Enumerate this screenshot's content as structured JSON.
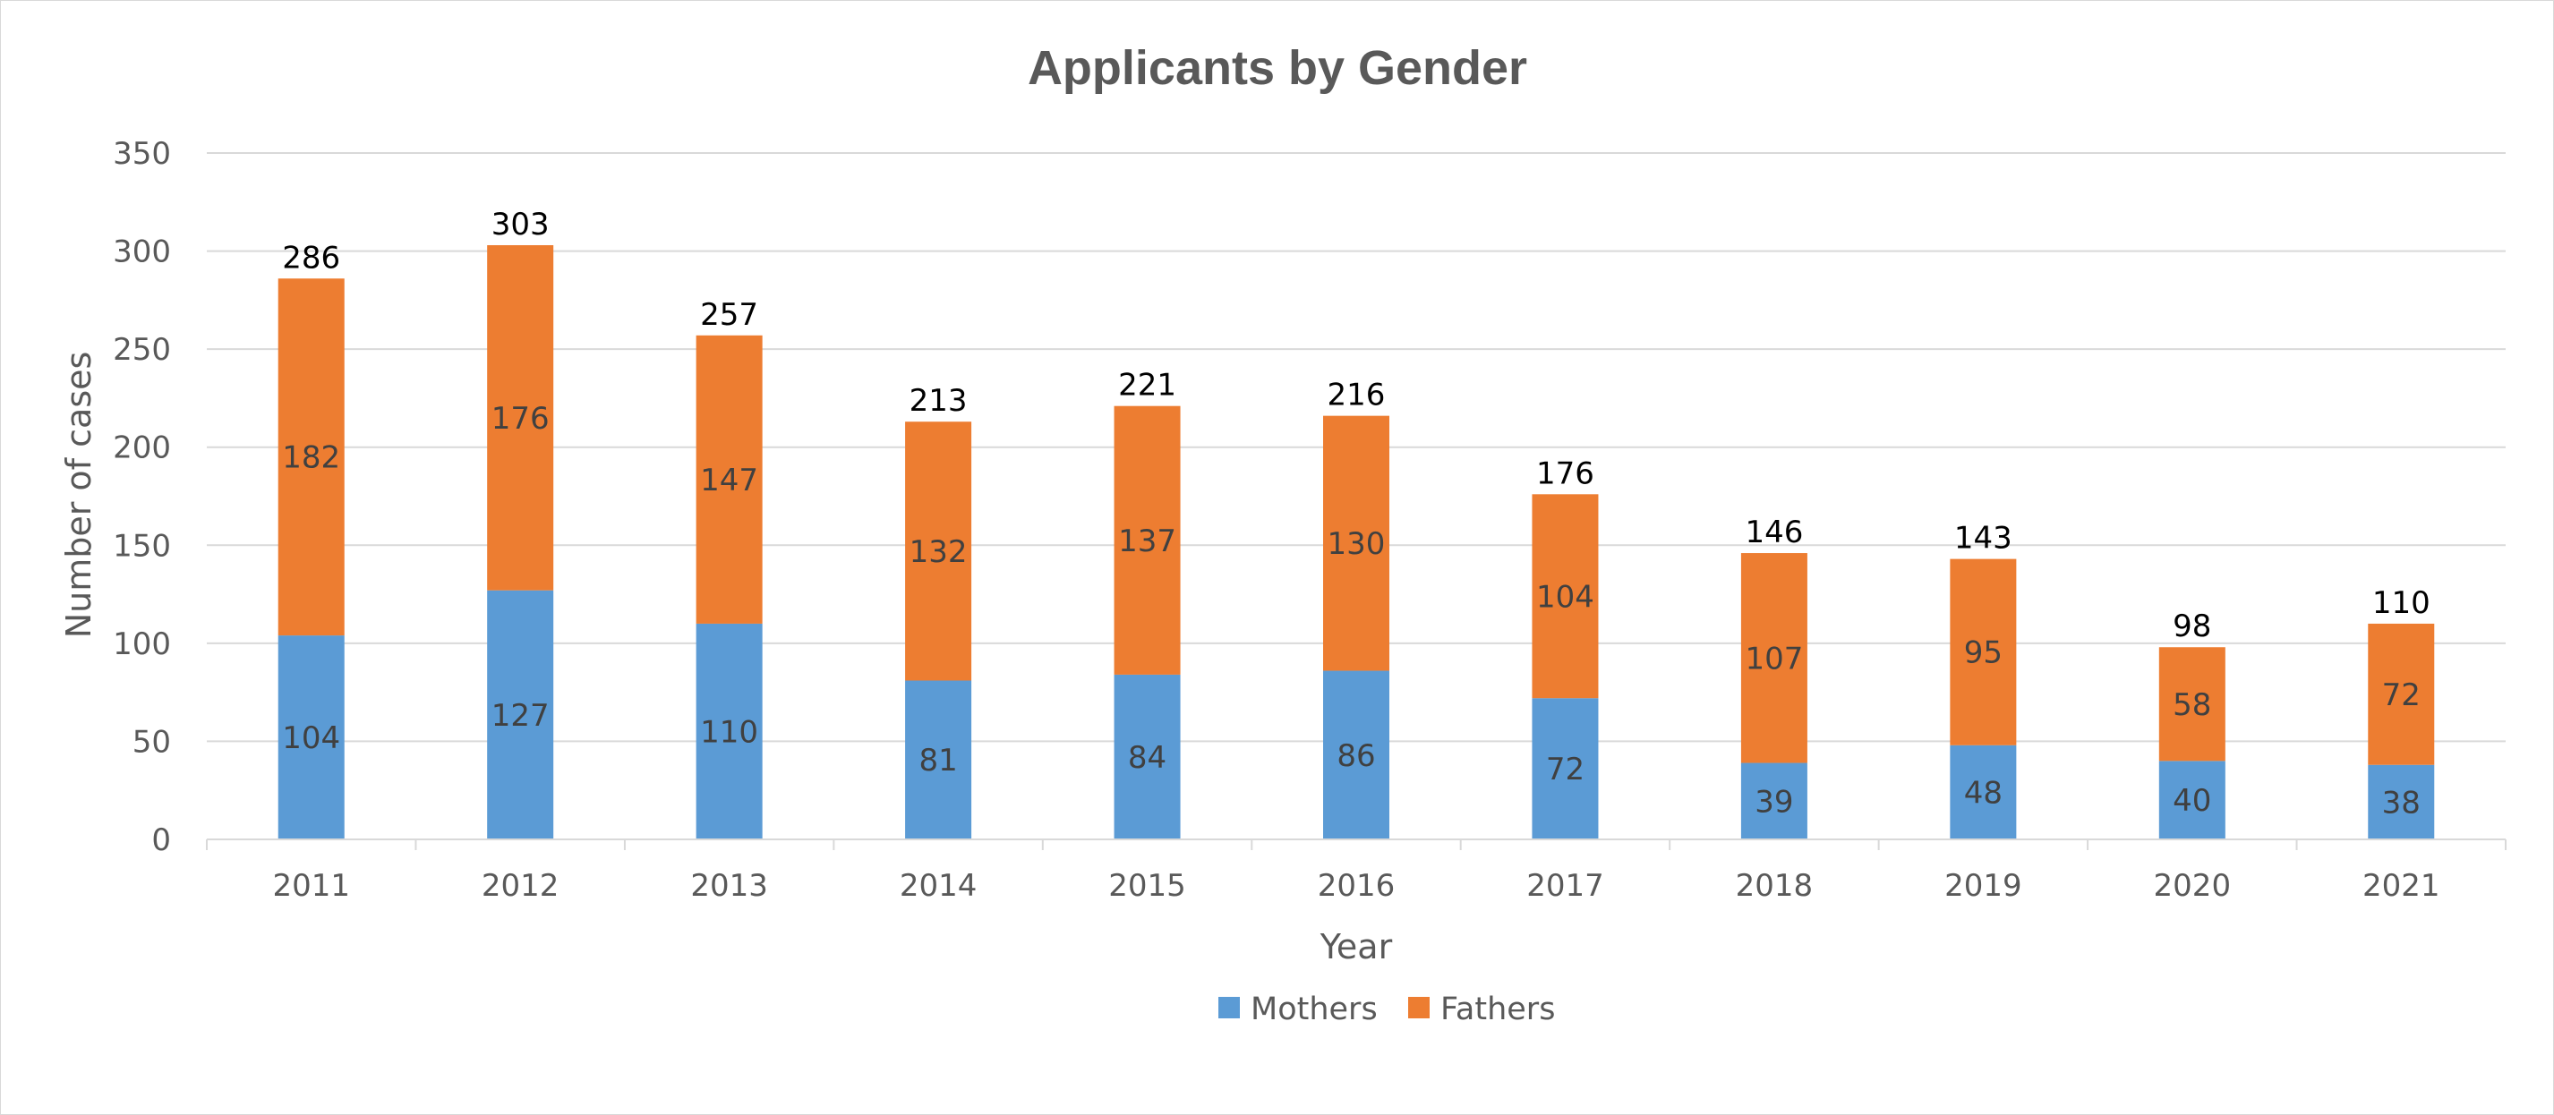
{
  "chart_data": {
    "type": "bar",
    "stacked": true,
    "title": "Applicants by Gender",
    "xlabel": "Year",
    "ylabel": "Number of cases",
    "ylim": [
      0,
      350
    ],
    "yticks": [
      0,
      50,
      100,
      150,
      200,
      250,
      300,
      350
    ],
    "grid": true,
    "legend_position": "bottom",
    "categories": [
      "2011",
      "2012",
      "2013",
      "2014",
      "2015",
      "2016",
      "2017",
      "2018",
      "2019",
      "2020",
      "2021"
    ],
    "series": [
      {
        "name": "Mothers",
        "color": "#5b9bd5",
        "values": [
          104,
          127,
          110,
          81,
          84,
          86,
          72,
          39,
          48,
          40,
          38
        ]
      },
      {
        "name": "Fathers",
        "color": "#ed7d31",
        "values": [
          182,
          176,
          147,
          132,
          137,
          130,
          104,
          107,
          95,
          58,
          72
        ]
      }
    ],
    "totals": [
      286,
      303,
      257,
      213,
      221,
      216,
      176,
      146,
      143,
      98,
      110
    ]
  }
}
